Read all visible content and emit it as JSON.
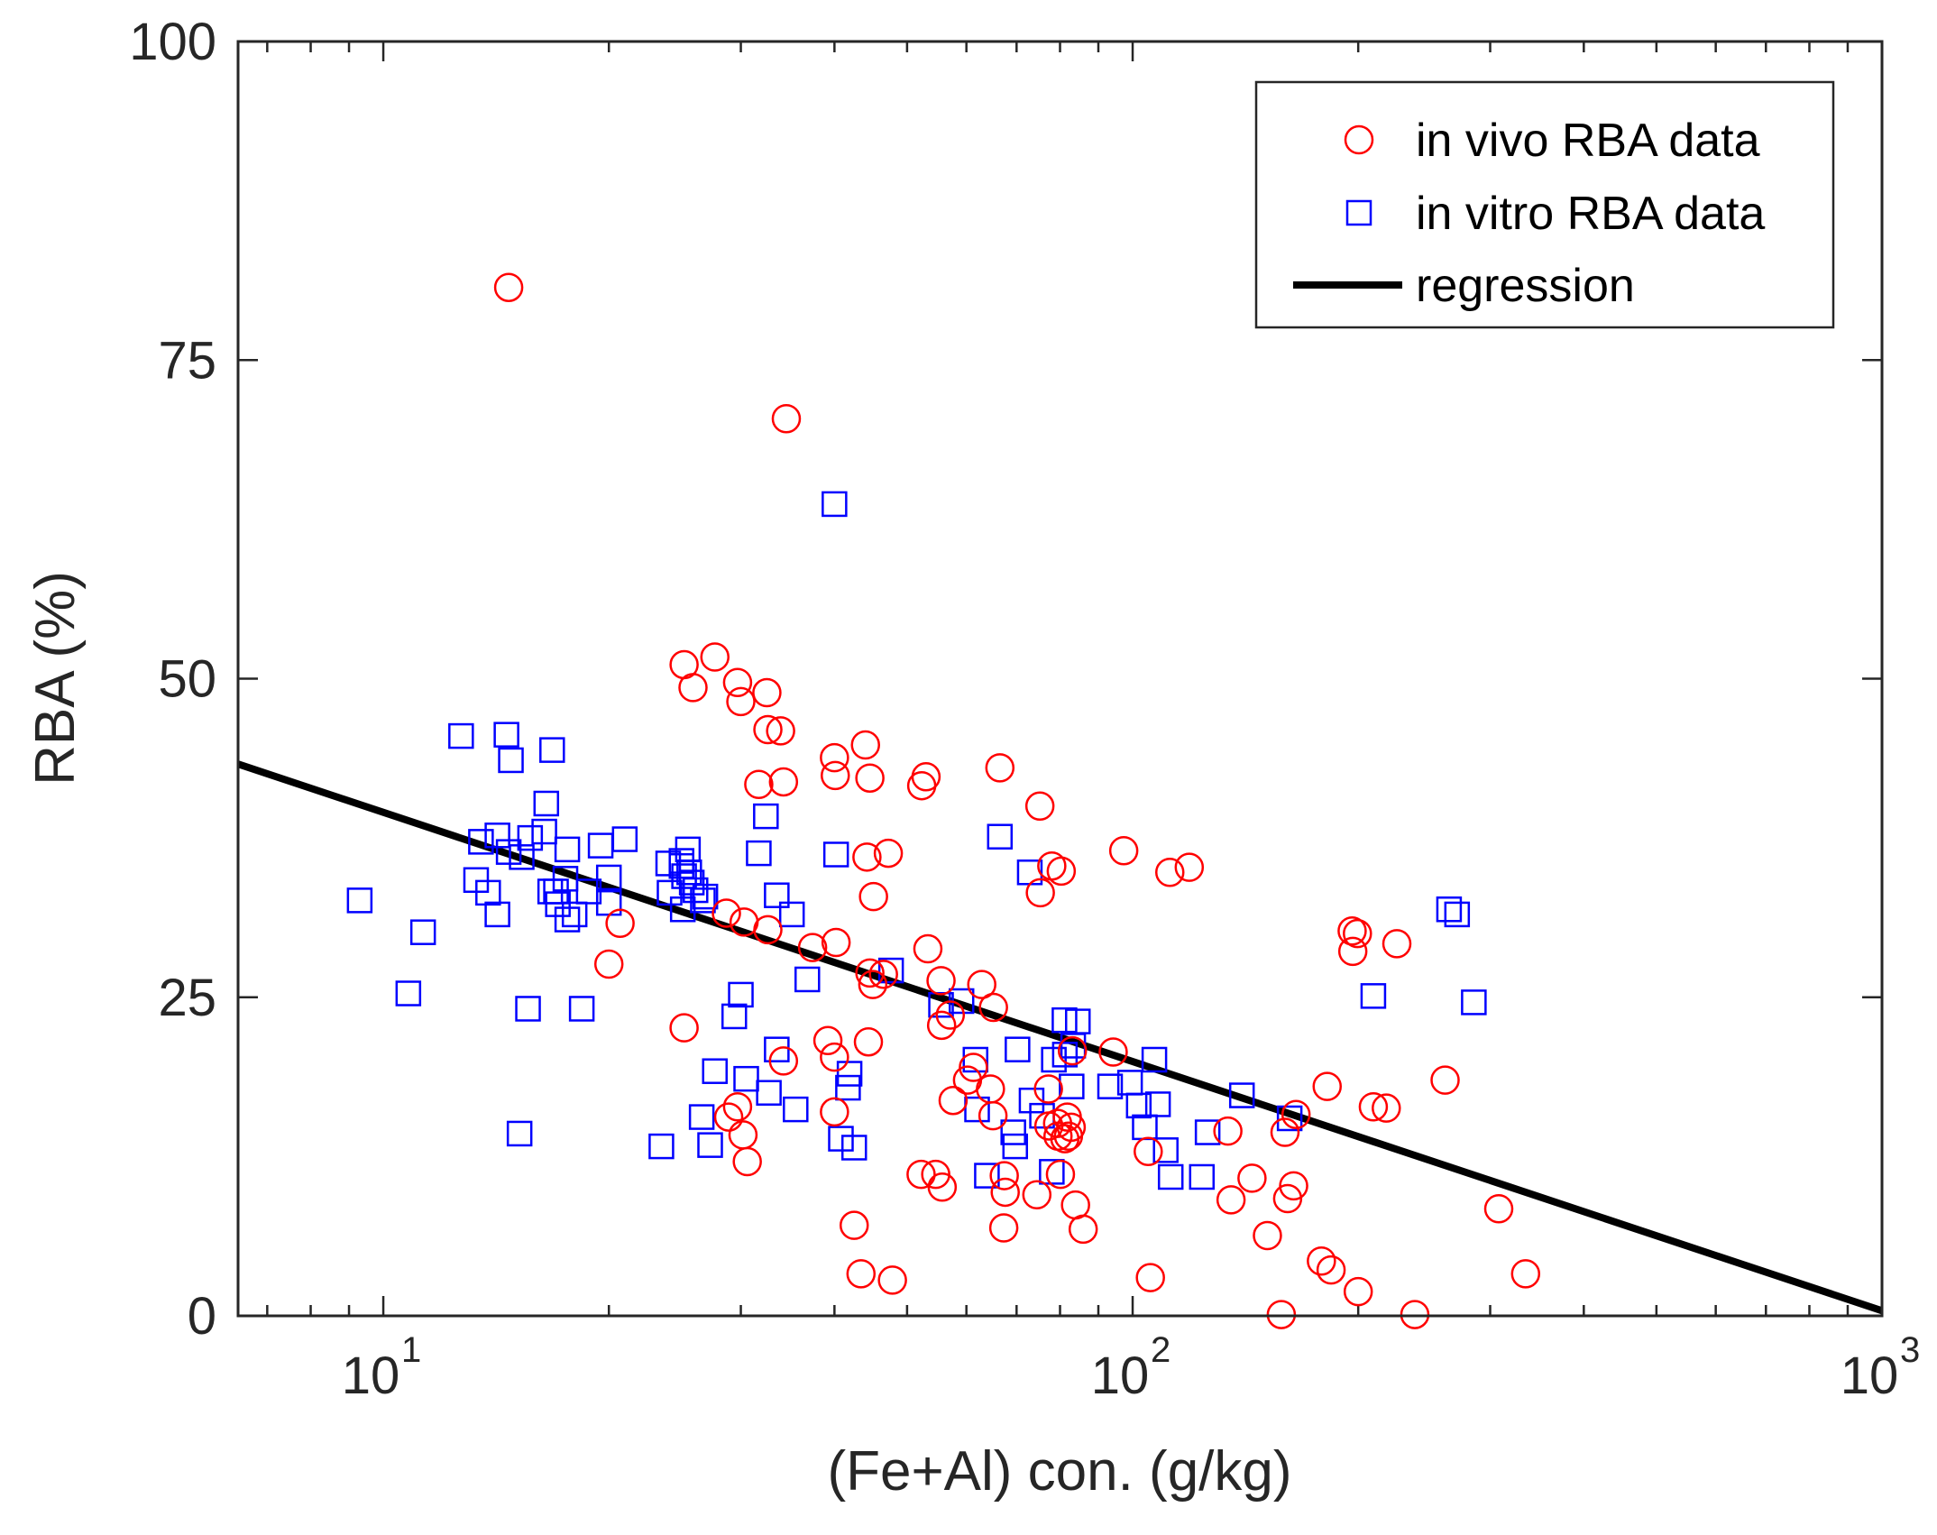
{
  "chart_data": {
    "type": "scatter",
    "title": "",
    "xlabel": "(Fe+Al) con. (g/kg)",
    "ylabel": "RBA (%)",
    "xscale": "log",
    "xlim": [
      6.4,
      1000
    ],
    "ylim": [
      0,
      100
    ],
    "x_ticks": [
      {
        "value": 10,
        "base": "10",
        "exp": "1"
      },
      {
        "value": 100,
        "base": "10",
        "exp": "2"
      },
      {
        "value": 1000,
        "base": "10",
        "exp": "3"
      }
    ],
    "y_ticks": [
      {
        "value": 0,
        "label": "0"
      },
      {
        "value": 25,
        "label": "25"
      },
      {
        "value": 50,
        "label": "50"
      },
      {
        "value": 75,
        "label": "75"
      },
      {
        "value": 100,
        "label": "100"
      }
    ],
    "legend": {
      "position": "top-right",
      "items": [
        {
          "label": "in vivo RBA data",
          "marker": "circle",
          "color": "#ff0000"
        },
        {
          "label": "in vitro RBA data",
          "marker": "square",
          "color": "#0000ff"
        },
        {
          "label": "regression",
          "marker": "line",
          "color": "#000000"
        }
      ]
    },
    "series": [
      {
        "name": "in vivo RBA data",
        "marker": "circle",
        "color": "#ff0000",
        "points": [
          [
            14.7,
            80.7
          ],
          [
            34.5,
            70.4
          ],
          [
            25.2,
            51.1
          ],
          [
            27.7,
            51.7
          ],
          [
            25.9,
            49.3
          ],
          [
            29.7,
            49.7
          ],
          [
            30.0,
            48.2
          ],
          [
            32.5,
            48.9
          ],
          [
            32.6,
            46.0
          ],
          [
            33.9,
            45.9
          ],
          [
            40.0,
            43.8
          ],
          [
            44.0,
            44.8
          ],
          [
            40.1,
            42.4
          ],
          [
            44.6,
            42.2
          ],
          [
            52.3,
            41.6
          ],
          [
            53.0,
            42.3
          ],
          [
            66.5,
            43.0
          ],
          [
            75.2,
            40.0
          ],
          [
            31.7,
            41.7
          ],
          [
            34.2,
            41.9
          ],
          [
            44.2,
            36.0
          ],
          [
            47.2,
            36.3
          ],
          [
            80.3,
            34.9
          ],
          [
            78.0,
            35.3
          ],
          [
            75.3,
            33.2
          ],
          [
            97.3,
            36.5
          ],
          [
            112.1,
            34.8
          ],
          [
            119.0,
            35.2
          ],
          [
            20.7,
            30.8
          ],
          [
            20.0,
            27.6
          ],
          [
            30.3,
            30.9
          ],
          [
            28.7,
            31.6
          ],
          [
            32.6,
            30.3
          ],
          [
            37.4,
            28.9
          ],
          [
            40.2,
            29.3
          ],
          [
            45.0,
            26.0
          ],
          [
            45.1,
            32.9
          ],
          [
            44.6,
            26.9
          ],
          [
            46.5,
            26.8
          ],
          [
            53.3,
            28.8
          ],
          [
            55.5,
            26.3
          ],
          [
            62.9,
            26.0
          ],
          [
            65.2,
            24.2
          ],
          [
            57.1,
            23.6
          ],
          [
            55.6,
            22.8
          ],
          [
            25.2,
            22.6
          ],
          [
            39.2,
            21.6
          ],
          [
            44.4,
            21.5
          ],
          [
            40.0,
            20.3
          ],
          [
            34.2,
            20.0
          ],
          [
            61.3,
            19.5
          ],
          [
            60.2,
            18.5
          ],
          [
            57.6,
            16.9
          ],
          [
            64.6,
            17.8
          ],
          [
            65.1,
            15.7
          ],
          [
            77.2,
            17.8
          ],
          [
            79.4,
            15.1
          ],
          [
            77.3,
            14.9
          ],
          [
            81.8,
            15.6
          ],
          [
            82.8,
            14.8
          ],
          [
            79.5,
            14.1
          ],
          [
            81.2,
            13.9
          ],
          [
            82.1,
            14.1
          ],
          [
            83.1,
            20.8
          ],
          [
            94.2,
            20.7
          ],
          [
            104.9,
            12.9
          ],
          [
            134.0,
            14.5
          ],
          [
            159.7,
            14.4
          ],
          [
            165.2,
            15.8
          ],
          [
            181.8,
            18.0
          ],
          [
            209.5,
            16.4
          ],
          [
            218.0,
            16.3
          ],
          [
            261.2,
            18.5
          ],
          [
            196.3,
            30.2
          ],
          [
            199.5,
            30.0
          ],
          [
            196.7,
            28.6
          ],
          [
            225.2,
            29.2
          ],
          [
            28.9,
            15.6
          ],
          [
            29.7,
            16.4
          ],
          [
            30.2,
            14.2
          ],
          [
            30.6,
            12.1
          ],
          [
            40.0,
            16.0
          ],
          [
            52.2,
            11.1
          ],
          [
            54.6,
            11.1
          ],
          [
            55.7,
            10.1
          ],
          [
            67.4,
            11.0
          ],
          [
            67.6,
            9.7
          ],
          [
            67.3,
            6.9
          ],
          [
            74.5,
            9.5
          ],
          [
            80.1,
            11.1
          ],
          [
            83.9,
            8.7
          ],
          [
            85.9,
            6.8
          ],
          [
            42.5,
            7.1
          ],
          [
            43.4,
            3.3
          ],
          [
            47.8,
            2.8
          ],
          [
            105.6,
            3.0
          ],
          [
            135.3,
            9.1
          ],
          [
            144.3,
            10.8
          ],
          [
            151.3,
            6.3
          ],
          [
            161.0,
            9.2
          ],
          [
            164.0,
            10.2
          ],
          [
            178.6,
            4.3
          ],
          [
            184.0,
            3.6
          ],
          [
            200.0,
            1.9
          ],
          [
            157.9,
            0.1
          ],
          [
            238.0,
            0.1
          ],
          [
            308.0,
            8.4
          ],
          [
            334.5,
            3.3
          ]
        ]
      },
      {
        "name": "in vitro RBA data",
        "marker": "square",
        "color": "#0000ff",
        "points": [
          [
            40.0,
            63.7
          ],
          [
            12.7,
            45.5
          ],
          [
            14.6,
            45.6
          ],
          [
            14.8,
            43.6
          ],
          [
            16.8,
            44.4
          ],
          [
            16.5,
            40.2
          ],
          [
            13.3,
            34.2
          ],
          [
            13.5,
            37.2
          ],
          [
            14.2,
            37.7
          ],
          [
            14.7,
            36.4
          ],
          [
            15.3,
            36.0
          ],
          [
            16.4,
            38.0
          ],
          [
            15.7,
            37.5
          ],
          [
            16.7,
            33.3
          ],
          [
            17.0,
            33.3
          ],
          [
            17.6,
            36.6
          ],
          [
            17.5,
            34.3
          ],
          [
            18.8,
            33.3
          ],
          [
            18.0,
            31.5
          ],
          [
            17.1,
            32.3
          ],
          [
            17.6,
            31.1
          ],
          [
            19.5,
            36.9
          ],
          [
            20.0,
            34.4
          ],
          [
            21.0,
            37.4
          ],
          [
            20.0,
            32.4
          ],
          [
            14.2,
            31.5
          ],
          [
            13.8,
            33.2
          ],
          [
            9.3,
            32.6
          ],
          [
            11.3,
            30.1
          ],
          [
            10.8,
            25.3
          ],
          [
            15.6,
            24.1
          ],
          [
            18.4,
            24.1
          ],
          [
            15.2,
            14.3
          ],
          [
            24.0,
            35.5
          ],
          [
            24.1,
            33.2
          ],
          [
            25.5,
            36.6
          ],
          [
            25.0,
            35.3
          ],
          [
            25.0,
            35.7
          ],
          [
            25.6,
            34.8
          ],
          [
            25.2,
            34.5
          ],
          [
            25.8,
            34.0
          ],
          [
            26.1,
            33.4
          ],
          [
            26.9,
            32.9
          ],
          [
            25.1,
            31.9
          ],
          [
            26.7,
            32.6
          ],
          [
            32.4,
            39.2
          ],
          [
            31.7,
            36.3
          ],
          [
            33.5,
            33.0
          ],
          [
            35.1,
            31.5
          ],
          [
            40.2,
            36.2
          ],
          [
            29.4,
            23.5
          ],
          [
            30.0,
            25.2
          ],
          [
            27.7,
            19.2
          ],
          [
            30.5,
            18.6
          ],
          [
            32.7,
            17.5
          ],
          [
            33.5,
            20.9
          ],
          [
            35.5,
            16.2
          ],
          [
            36.8,
            26.4
          ],
          [
            40.8,
            13.9
          ],
          [
            41.9,
            19.0
          ],
          [
            41.7,
            17.9
          ],
          [
            42.5,
            13.2
          ],
          [
            47.6,
            27.1
          ],
          [
            55.5,
            24.4
          ],
          [
            59.1,
            24.7
          ],
          [
            61.7,
            20.1
          ],
          [
            70.2,
            20.9
          ],
          [
            72.9,
            34.8
          ],
          [
            66.5,
            37.6
          ],
          [
            62.0,
            16.2
          ],
          [
            69.3,
            14.4
          ],
          [
            69.7,
            13.3
          ],
          [
            63.9,
            11.0
          ],
          [
            73.3,
            16.9
          ],
          [
            75.7,
            15.7
          ],
          [
            78.0,
            11.3
          ],
          [
            78.5,
            20.1
          ],
          [
            81.1,
            23.2
          ],
          [
            81.2,
            20.5
          ],
          [
            83.3,
            21.2
          ],
          [
            84.5,
            23.1
          ],
          [
            82.9,
            18.0
          ],
          [
            93.3,
            18.0
          ],
          [
            99.2,
            18.3
          ],
          [
            101.9,
            16.5
          ],
          [
            103.8,
            14.8
          ],
          [
            108.1,
            16.6
          ],
          [
            106.9,
            20.1
          ],
          [
            110.7,
            13.0
          ],
          [
            112.4,
            10.9
          ],
          [
            123.7,
            10.9
          ],
          [
            125.9,
            14.4
          ],
          [
            139.9,
            17.3
          ],
          [
            162.0,
            15.5
          ],
          [
            27.3,
            13.4
          ],
          [
            26.6,
            15.6
          ],
          [
            23.5,
            13.3
          ],
          [
            209.5,
            25.1
          ],
          [
            264.4,
            31.9
          ],
          [
            271.0,
            31.5
          ],
          [
            285.3,
            24.6
          ]
        ]
      }
    ],
    "regression": {
      "name": "regression",
      "points": [
        [
          6.4,
          43.3
        ],
        [
          1000,
          0.4
        ]
      ]
    }
  }
}
